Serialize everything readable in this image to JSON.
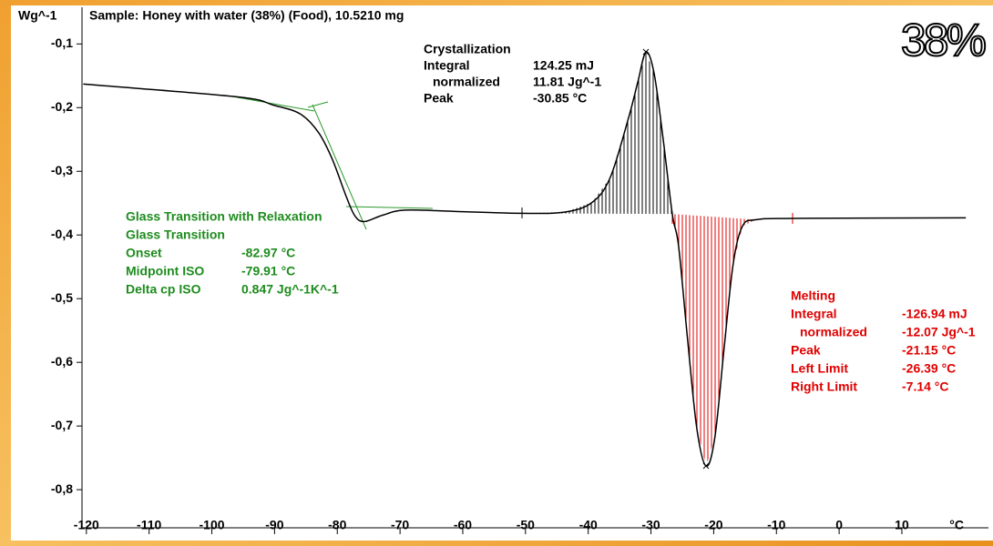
{
  "chart_data": {
    "type": "line",
    "title": "Sample: Honey with water (38%) (Food), 10.5210 mg",
    "y_label": "Wg^-1",
    "x_label": "°C",
    "badge": "38%",
    "xlim": [
      -120.7,
      23.8
    ],
    "ylim": [
      -0.857,
      -0.071
    ],
    "xticks": [
      -120,
      -110,
      -100,
      -90,
      -80,
      -70,
      -60,
      -50,
      -40,
      -30,
      -20,
      -10,
      0,
      10
    ],
    "yticks": [
      {
        "value": -0.1,
        "label": "-0,1"
      },
      {
        "value": -0.2,
        "label": "-0,2"
      },
      {
        "value": -0.3,
        "label": "-0,3"
      },
      {
        "value": -0.4,
        "label": "-0,4"
      },
      {
        "value": -0.5,
        "label": "-0,5"
      },
      {
        "value": -0.6,
        "label": "-0,6"
      },
      {
        "value": -0.7,
        "label": "-0,7"
      },
      {
        "value": -0.8,
        "label": "-0,8"
      }
    ],
    "series": [
      {
        "color": "#000000",
        "x": [
          -120.5,
          -96,
          -90.2,
          -85.9,
          -83,
          -80.8,
          -78.6,
          -77.2,
          -75.7,
          -72.8,
          -69.2,
          -61.2,
          -50.6,
          -43.7,
          -39.4,
          -36.5,
          -33.6,
          -32.1,
          -30.8,
          -29.5,
          -28.1,
          -26.6,
          -25.6,
          -24.2,
          -22.7,
          -21.2,
          -19.8,
          -18.3,
          -16.9,
          -15.4,
          -13.2,
          -7.4,
          20.2
        ],
        "values": [
          -0.163,
          -0.183,
          -0.196,
          -0.21,
          -0.239,
          -0.281,
          -0.339,
          -0.37,
          -0.379,
          -0.369,
          -0.361,
          -0.363,
          -0.366,
          -0.364,
          -0.349,
          -0.31,
          -0.217,
          -0.16,
          -0.113,
          -0.146,
          -0.246,
          -0.367,
          -0.417,
          -0.56,
          -0.703,
          -0.763,
          -0.717,
          -0.574,
          -0.446,
          -0.386,
          -0.376,
          -0.374,
          -0.373
        ]
      }
    ],
    "annotations": {
      "glass": {
        "title": "Glass Transition with Relaxation",
        "subtitle": "Glass Transition",
        "rows": [
          [
            "Onset",
            "-82.97 °C"
          ],
          [
            "Midpoint ISO",
            "-79.91 °C"
          ],
          [
            "Delta cp ISO",
            "0.847 Jg^-1K^-1"
          ]
        ]
      },
      "crystallization": {
        "title": "Crystallization",
        "rows": [
          [
            "Integral",
            "124.25 mJ"
          ],
          [
            "normalized",
            "11.81 Jg^-1"
          ],
          [
            "Peak",
            "-30.85 °C"
          ]
        ]
      },
      "melting": {
        "title": "Melting",
        "rows": [
          [
            "Integral",
            "-126.94 mJ"
          ],
          [
            "normalized",
            "-12.07 Jg^-1"
          ],
          [
            "Peak",
            "-21.15 °C"
          ],
          [
            "Left Limit",
            "-26.39 °C"
          ],
          [
            "Right Limit",
            "-7.14 °C"
          ]
        ]
      }
    }
  }
}
